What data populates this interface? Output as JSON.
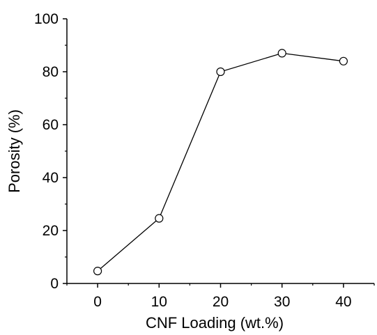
{
  "chart_data": {
    "type": "line",
    "title": "",
    "xlabel": "CNF Loading (wt.%)",
    "ylabel": "Porosity (%)",
    "x": [
      0,
      10,
      20,
      30,
      40
    ],
    "series": [
      {
        "values": [
          4.7,
          24.6,
          80.0,
          87.0,
          84.0
        ]
      }
    ],
    "xlim": [
      -5,
      45
    ],
    "ylim": [
      0,
      100
    ],
    "xticks": [
      "0",
      "10",
      "20",
      "30",
      "40"
    ],
    "yticks": [
      "0",
      "20",
      "40",
      "60",
      "80",
      "100"
    ],
    "marker": "open-circle",
    "grid": false,
    "colors": {
      "line": "#000000",
      "marker_fill": "#ffffff",
      "axis": "#000000"
    }
  }
}
